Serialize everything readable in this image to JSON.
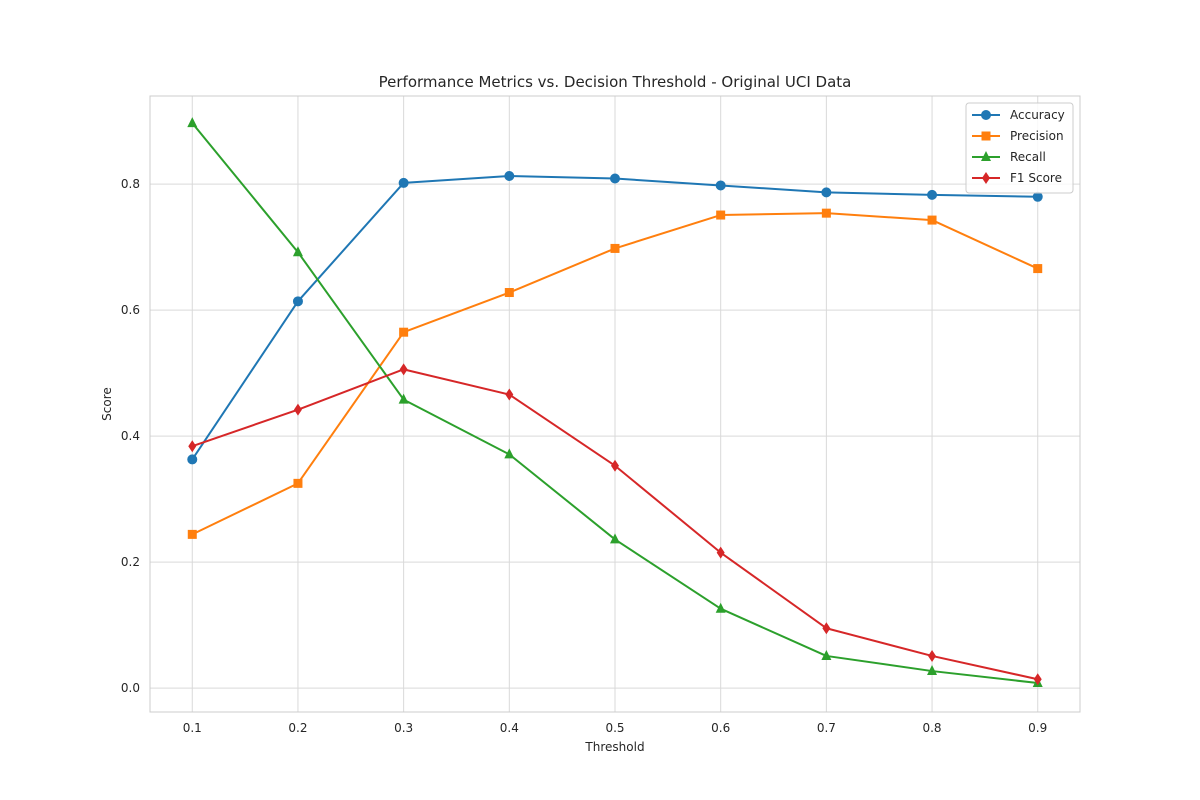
{
  "chart_data": {
    "type": "line",
    "title": "Performance Metrics vs. Decision Threshold - Original UCI Data",
    "xlabel": "Threshold",
    "ylabel": "Score",
    "x": [
      0.1,
      0.2,
      0.3,
      0.4,
      0.5,
      0.6,
      0.7,
      0.8,
      0.9
    ],
    "x_ticks": [
      "0.1",
      "0.2",
      "0.3",
      "0.4",
      "0.5",
      "0.6",
      "0.7",
      "0.8",
      "0.9"
    ],
    "y_ticks": [
      "0.0",
      "0.2",
      "0.4",
      "0.6",
      "0.8"
    ],
    "xlim": [
      0.06,
      0.94
    ],
    "ylim": [
      -0.038,
      0.94
    ],
    "grid": true,
    "legend_position": "top-right",
    "series": [
      {
        "name": "Accuracy",
        "color": "#1f77b4",
        "marker": "circle",
        "values": [
          0.363,
          0.614,
          0.802,
          0.813,
          0.809,
          0.798,
          0.787,
          0.783,
          0.78
        ]
      },
      {
        "name": "Precision",
        "color": "#ff7f0e",
        "marker": "square",
        "values": [
          0.244,
          0.325,
          0.565,
          0.628,
          0.698,
          0.751,
          0.754,
          0.743,
          0.666
        ]
      },
      {
        "name": "Recall",
        "color": "#2ca02c",
        "marker": "triangle",
        "values": [
          0.897,
          0.692,
          0.458,
          0.371,
          0.236,
          0.126,
          0.051,
          0.027,
          0.008
        ]
      },
      {
        "name": "F1 Score",
        "color": "#d62728",
        "marker": "diamond",
        "values": [
          0.384,
          0.442,
          0.506,
          0.466,
          0.353,
          0.215,
          0.095,
          0.051,
          0.014
        ]
      }
    ]
  }
}
